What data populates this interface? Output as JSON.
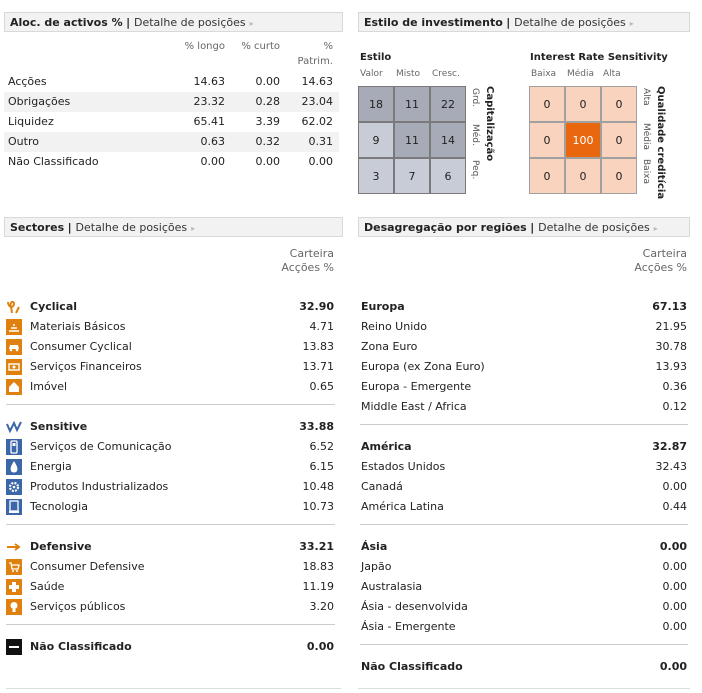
{
  "alloc": {
    "title": "Aloc. de activos %",
    "link": "Detalhe de posições",
    "col_long": "% longo",
    "col_short": "% curto",
    "col_pat_1": "%",
    "col_pat_2": "Patrim.",
    "rows": [
      {
        "label": "Acções",
        "long": "14.63",
        "short": "0.00",
        "pat": "14.63"
      },
      {
        "label": "Obrigações",
        "long": "23.32",
        "short": "0.28",
        "pat": "23.04"
      },
      {
        "label": "Liquidez",
        "long": "65.41",
        "short": "3.39",
        "pat": "62.02"
      },
      {
        "label": "Outro",
        "long": "0.63",
        "short": "0.32",
        "pat": "0.31"
      },
      {
        "label": "Não Classificado",
        "long": "0.00",
        "short": "0.00",
        "pat": "0.00"
      }
    ]
  },
  "style": {
    "title": "Estilo de investimento",
    "link": "Detalhe de posições",
    "equity": {
      "title": "Estilo",
      "cols": [
        "Valor",
        "Misto",
        "Cresc."
      ],
      "rows_labels": [
        "Grd.",
        "Méd.",
        "Peq."
      ],
      "axis_title": "Capitalização",
      "cells": [
        [
          "18",
          "11",
          "22"
        ],
        [
          "9",
          "11",
          "14"
        ],
        [
          "3",
          "7",
          "6"
        ]
      ]
    },
    "bond": {
      "title": "Interest Rate Sensitivity",
      "cols": [
        "Baixa",
        "Média",
        "Alta"
      ],
      "rows_labels": [
        "Alta",
        "Média",
        "Baixa"
      ],
      "axis_title": "Qualidade creditícia",
      "cells": [
        [
          "0",
          "0",
          "0"
        ],
        [
          "0",
          "100",
          "0"
        ],
        [
          "0",
          "0",
          "0"
        ]
      ]
    }
  },
  "sectors": {
    "title": "Sectores",
    "link": "Detalhe de posições",
    "col_1": "Carteira",
    "col_2": "Acções %",
    "groups": [
      {
        "name": "Cyclical",
        "value": "32.90",
        "items": [
          {
            "label": "Materiais Básicos",
            "value": "4.71"
          },
          {
            "label": "Consumer Cyclical",
            "value": "13.83"
          },
          {
            "label": "Serviços Financeiros",
            "value": "13.71"
          },
          {
            "label": "Imóvel",
            "value": "0.65"
          }
        ]
      },
      {
        "name": "Sensitive",
        "value": "33.88",
        "items": [
          {
            "label": "Serviços de Comunicação",
            "value": "6.52"
          },
          {
            "label": "Energia",
            "value": "6.15"
          },
          {
            "label": "Produtos Industrializados",
            "value": "10.48"
          },
          {
            "label": "Tecnologia",
            "value": "10.73"
          }
        ]
      },
      {
        "name": "Defensive",
        "value": "33.21",
        "items": [
          {
            "label": "Consumer Defensive",
            "value": "18.83"
          },
          {
            "label": "Saúde",
            "value": "11.19"
          },
          {
            "label": "Serviços públicos",
            "value": "3.20"
          }
        ]
      }
    ],
    "unclassified": {
      "label": "Não Classificado",
      "value": "0.00"
    }
  },
  "regions": {
    "title": "Desagregação por regiões",
    "link": "Detalhe de posições",
    "col_1": "Carteira",
    "col_2": "Acções %",
    "groups": [
      {
        "name": "Europa",
        "value": "67.13",
        "items": [
          {
            "label": "Reino Unido",
            "value": "21.95"
          },
          {
            "label": "Zona Euro",
            "value": "30.78"
          },
          {
            "label": "Europa (ex Zona Euro)",
            "value": "13.93"
          },
          {
            "label": "Europa - Emergente",
            "value": "0.36"
          },
          {
            "label": "Middle East / Africa",
            "value": "0.12"
          }
        ]
      },
      {
        "name": "América",
        "value": "32.87",
        "items": [
          {
            "label": "Estados Unidos",
            "value": "32.43"
          },
          {
            "label": "Canadá",
            "value": "0.00"
          },
          {
            "label": "América Latina",
            "value": "0.44"
          }
        ]
      },
      {
        "name": "Ásia",
        "value": "0.00",
        "items": [
          {
            "label": "Japão",
            "value": "0.00"
          },
          {
            "label": "Australasia",
            "value": "0.00"
          },
          {
            "label": "Ásia - desenvolvida",
            "value": "0.00"
          },
          {
            "label": "Ásia - Emergente",
            "value": "0.00"
          }
        ]
      }
    ],
    "unclassified": {
      "label": "Não Classificado",
      "value": "0.00"
    }
  }
}
